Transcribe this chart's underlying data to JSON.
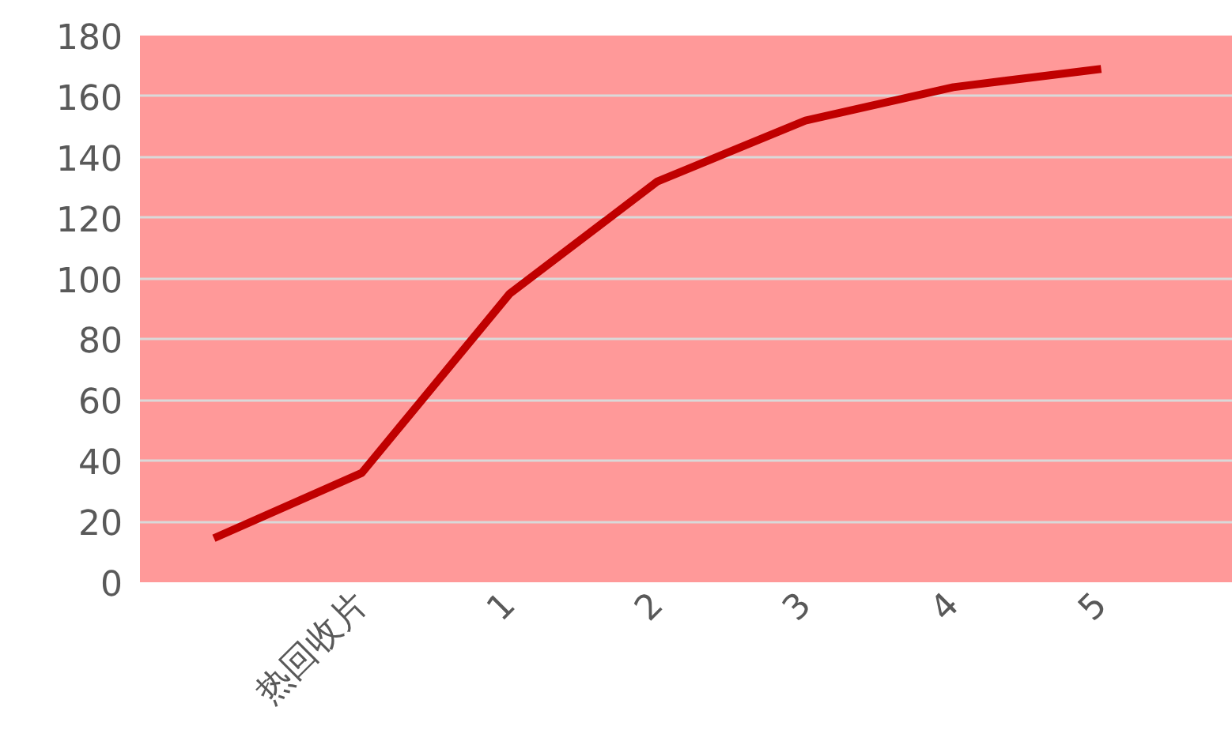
{
  "chart_data": {
    "type": "line",
    "categories": [
      null,
      "热回收片",
      "1",
      "2",
      "3",
      "4",
      "5"
    ],
    "series": [
      {
        "color": "#c00000",
        "values": [
          14.5,
          36,
          95,
          132,
          152,
          163,
          169
        ]
      }
    ],
    "ylim": [
      0,
      180
    ],
    "yticks": [
      0,
      20,
      40,
      60,
      80,
      100,
      120,
      140,
      160,
      180
    ],
    "grid": "y"
  }
}
